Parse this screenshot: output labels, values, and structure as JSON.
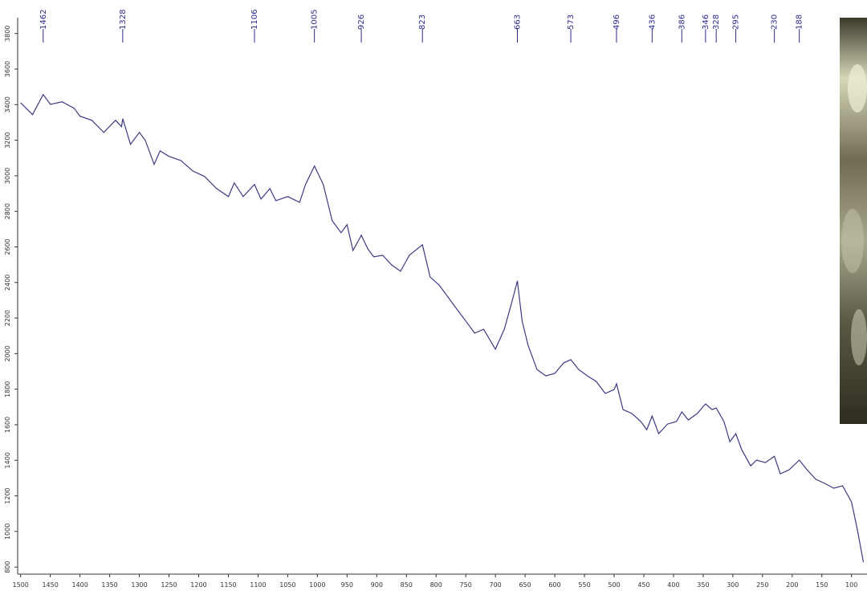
{
  "chart_data": {
    "type": "line",
    "color": "#3b3b82",
    "x": [
      1500,
      1480,
      1462,
      1450,
      1430,
      1410,
      1400,
      1380,
      1360,
      1340,
      1330,
      1328,
      1315,
      1300,
      1290,
      1275,
      1265,
      1250,
      1230,
      1210,
      1190,
      1170,
      1150,
      1140,
      1125,
      1106,
      1095,
      1080,
      1070,
      1050,
      1030,
      1020,
      1005,
      990,
      975,
      960,
      950,
      940,
      926,
      915,
      905,
      890,
      875,
      860,
      845,
      823,
      810,
      795,
      780,
      765,
      750,
      735,
      720,
      700,
      685,
      670,
      663,
      655,
      645,
      630,
      615,
      600,
      585,
      573,
      560,
      545,
      530,
      515,
      500,
      496,
      485,
      470,
      455,
      445,
      436,
      425,
      410,
      395,
      386,
      375,
      360,
      346,
      335,
      328,
      315,
      305,
      295,
      285,
      270,
      260,
      245,
      230,
      220,
      205,
      188,
      175,
      160,
      145,
      130,
      115,
      100,
      90,
      80
    ],
    "values": [
      3411,
      3344,
      3457,
      3402,
      3416,
      3380,
      3335,
      3312,
      3244,
      3312,
      3276,
      3321,
      3177,
      3244,
      3199,
      3064,
      3140,
      3109,
      3086,
      3027,
      2996,
      2928,
      2883,
      2960,
      2883,
      2951,
      2869,
      2928,
      2860,
      2883,
      2851,
      2951,
      3055,
      2951,
      2747,
      2680,
      2725,
      2580,
      2666,
      2589,
      2544,
      2553,
      2499,
      2463,
      2553,
      2612,
      2431,
      2386,
      2318,
      2250,
      2183,
      2115,
      2137,
      2025,
      2137,
      2318,
      2409,
      2183,
      2047,
      1911,
      1875,
      1889,
      1948,
      1966,
      1911,
      1875,
      1843,
      1776,
      1798,
      1830,
      1685,
      1663,
      1618,
      1572,
      1649,
      1550,
      1604,
      1618,
      1672,
      1627,
      1663,
      1717,
      1685,
      1694,
      1618,
      1505,
      1550,
      1459,
      1369,
      1401,
      1387,
      1423,
      1324,
      1347,
      1401,
      1347,
      1293,
      1270,
      1243,
      1257,
      1166,
      1008,
      827
    ],
    "xlim": [
      1505,
      78
    ],
    "ylim": [
      760,
      3880
    ],
    "xticks": [
      1500,
      1450,
      1400,
      1350,
      1300,
      1250,
      1200,
      1150,
      1100,
      1050,
      1000,
      950,
      900,
      850,
      800,
      750,
      700,
      650,
      600,
      550,
      500,
      450,
      400,
      350,
      300,
      250,
      200,
      150,
      100
    ],
    "yticks": [
      800,
      1000,
      1200,
      1400,
      1600,
      1800,
      2000,
      2200,
      2400,
      2600,
      2800,
      3000,
      3200,
      3400,
      3600,
      3800
    ],
    "peak_labels": [
      1462,
      1328,
      1106,
      1005,
      926,
      823,
      663,
      573,
      496,
      436,
      386,
      346,
      328,
      295,
      230,
      188
    ]
  }
}
